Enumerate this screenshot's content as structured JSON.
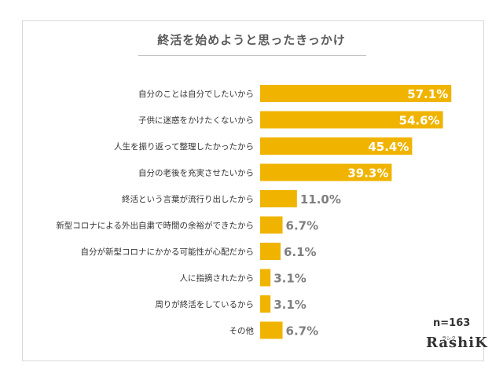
{
  "chart_data": {
    "type": "bar",
    "orientation": "horizontal",
    "title": "終活を始めようと思ったきっかけ",
    "categories": [
      "自分のことは自分でしたいから",
      "子供に迷惑をかけたくないから",
      "人生を振り返って整理したかったから",
      "自分の老後を充実させたいから",
      "終活という言葉が流行り出したから",
      "新型コロナによる外出自粛で時間の余裕ができたから",
      "自分が新型コロナにかかる可能性が心配だから",
      "人に指摘されたから",
      "周りが終活をしているから",
      "その他"
    ],
    "values": [
      57.1,
      54.6,
      45.4,
      39.3,
      11.0,
      6.7,
      6.1,
      3.1,
      3.1,
      6.7
    ],
    "data_labels": [
      "57.1%",
      "54.6%",
      "45.4%",
      "39.3%",
      "11.0%",
      "6.7%",
      "6.1%",
      "3.1%",
      "3.1%",
      "6.7%"
    ],
    "xlim": [
      0,
      100
    ],
    "bar_color": "#f0b400",
    "grid": false
  },
  "note": "n=163",
  "logo": {
    "main": "RashiK",
    "sub": "ラシク"
  }
}
